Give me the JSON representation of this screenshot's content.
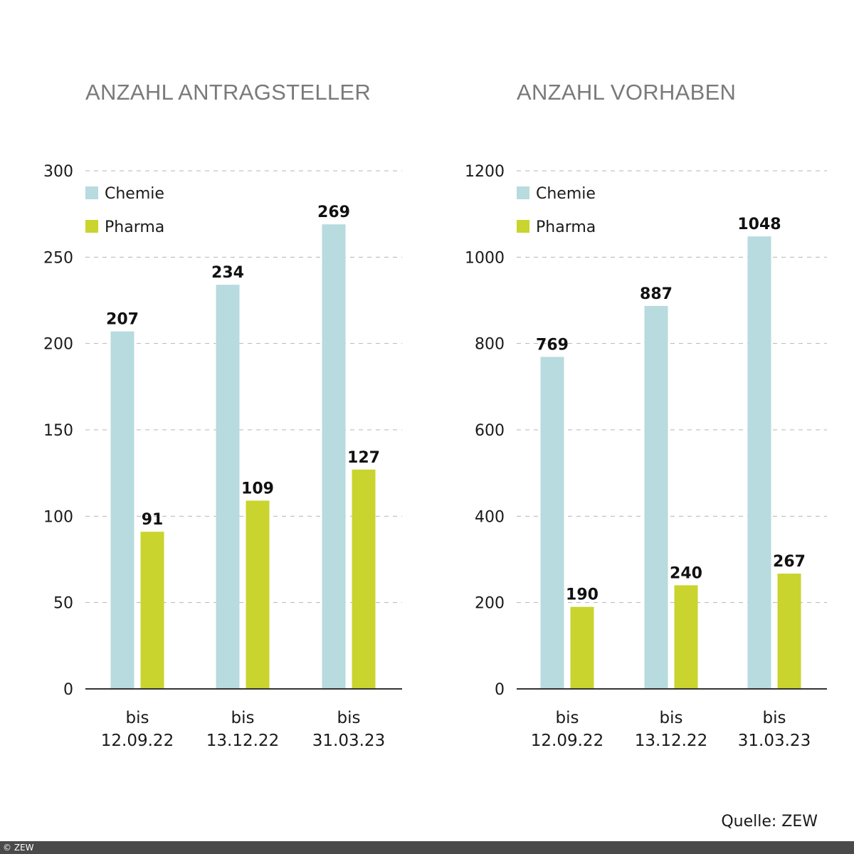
{
  "colors": {
    "chemie": "#b7dbde",
    "pharma": "#c9d42e",
    "axis": "#333333",
    "grid": "#b5b5b5",
    "title": "#7a7a7a"
  },
  "chart_data": [
    {
      "type": "bar",
      "title": "ANZAHL ANTRAGSTELLER",
      "categories": [
        [
          "bis",
          "12.09.22"
        ],
        [
          "bis",
          "13.12.22"
        ],
        [
          "bis",
          "31.03.23"
        ]
      ],
      "series": [
        {
          "name": "Chemie",
          "values": [
            207,
            234,
            269
          ]
        },
        {
          "name": "Pharma",
          "values": [
            91,
            109,
            127
          ]
        }
      ],
      "ylim": [
        0,
        300
      ],
      "yticks": [
        0,
        50,
        100,
        150,
        200,
        250,
        300
      ],
      "grid": true,
      "legend": "top-left"
    },
    {
      "type": "bar",
      "title": "ANZAHL VORHABEN",
      "categories": [
        [
          "bis",
          "12.09.22"
        ],
        [
          "bis",
          "13.12.22"
        ],
        [
          "bis",
          "31.03.23"
        ]
      ],
      "series": [
        {
          "name": "Chemie",
          "values": [
            769,
            887,
            1048
          ]
        },
        {
          "name": "Pharma",
          "values": [
            190,
            240,
            267
          ]
        }
      ],
      "ylim": [
        0,
        1200
      ],
      "yticks": [
        0,
        200,
        400,
        600,
        800,
        1000,
        1200
      ],
      "grid": true,
      "legend": "top-left"
    }
  ],
  "source": "Quelle: ZEW",
  "copyright": "© ZEW"
}
